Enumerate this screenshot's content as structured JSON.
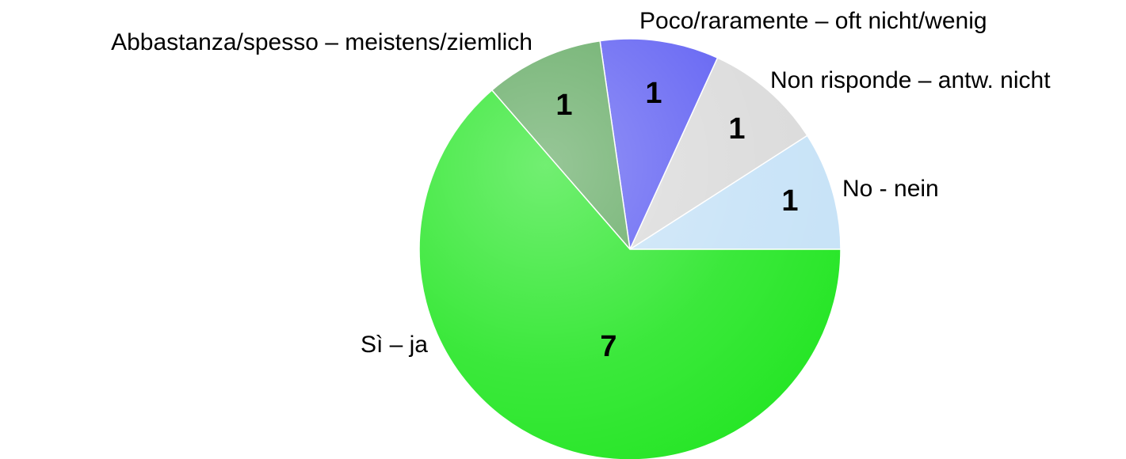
{
  "chart_data": {
    "type": "pie",
    "categories": [
      "No - nein",
      "Non risponde – antw. nicht",
      "Poco/raramente – oft nicht/wenig",
      "Abbastanza/spesso – meistens/ziemlich",
      "Sì – ja"
    ],
    "values": [
      1,
      1,
      1,
      1,
      7
    ],
    "colors": [
      "#c6e2f7",
      "#dadada",
      "#5c5cf2",
      "#5fa85f",
      "#26e626"
    ]
  }
}
